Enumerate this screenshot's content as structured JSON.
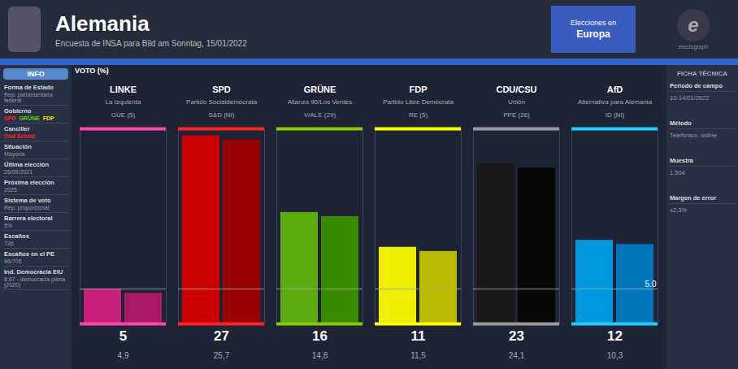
{
  "chart_data": {
    "type": "bar",
    "title": "Alemania",
    "subtitle": "Encuesta de INSA para Bild am Sonntag, 15/01/2022",
    "y_label": "VOTO (%)",
    "categories": [
      "LINKE",
      "SPD",
      "GRÜNE",
      "FDP",
      "CDU/CSU",
      "AfD"
    ],
    "category_full_names": [
      "La Izquierda",
      "Partido Socialdemócrata",
      "Alianza 90/Los Verdes",
      "Partido Libre Demócrata",
      "Unión",
      "Alternativa para Alemania"
    ],
    "category_groups": [
      "GUE (5)",
      "S&D (NI)",
      "V/ALE (29)",
      "RE (5)",
      "PPE (26)",
      "ID (NI)"
    ],
    "category_colors": [
      "#ff44aa",
      "#ff2222",
      "#88cc00",
      "#ffff00",
      "#999999",
      "#22ccff"
    ],
    "category_notes": [
      "4,9",
      "25,7",
      "14,8",
      "11,5",
      "24,1",
      "10,3"
    ],
    "series": [
      {
        "values": [
          5,
          27,
          16,
          11,
          23,
          12
        ],
        "colors": [
          "#c8207a",
          "#cc0000",
          "#5aaa10",
          "#eeee00",
          "#181818",
          "#0099dd"
        ],
        "data_labels": true
      },
      {
        "values": [
          4.4,
          26.4,
          15.4,
          10.4,
          22.4,
          11.4
        ],
        "colors": [
          "#aa1a66",
          "#990000",
          "#3a8a00",
          "#bbbb00",
          "#080808",
          "#0077bb"
        ]
      }
    ],
    "reference_line": {
      "value": 5.0,
      "label": "5.0"
    },
    "ylim": [
      0,
      28
    ],
    "tick_labels": false,
    "grid": false
  },
  "page": {
    "colors": {
      "bg_main": "#1e2336",
      "bg_header": "#252b3a",
      "bg_sidebar": "#283046",
      "accent_blue": "#3a5cbf"
    },
    "button": [
      "Elecciones en",
      "Europa"
    ],
    "logo": {
      "mark": "e",
      "name": "electograph"
    },
    "info": {
      "title": "INFO",
      "items": [
        {
          "label": "Forma de Estado",
          "value": "Rep. parlamentaria federal"
        },
        {
          "label": "Gobierno",
          "parties": [
            {
              "name": "SPD",
              "color": "#ff2222"
            },
            {
              "name": "GRÜNE",
              "color": "#66cc00"
            },
            {
              "name": "FDP",
              "color": "#ffdd00"
            }
          ]
        },
        {
          "label": "Canciller",
          "value": "Olaf Scholz",
          "color": "#ff2222"
        },
        {
          "label": "Situación",
          "value": "Mayoría"
        },
        {
          "label": "Última elección",
          "value": "26/09/2021"
        },
        {
          "label": "Próxima elección",
          "value": "2025"
        },
        {
          "label": "Sistema de voto",
          "value": "Rep. proporcional"
        },
        {
          "label": "Barrera electoral",
          "value": "5%"
        },
        {
          "label": "Escaños",
          "value": "736"
        },
        {
          "label": "Escaños en el PE",
          "value": "96/705"
        },
        {
          "label": "Ind. Democracia EIU",
          "value": "8,67 - democracia plena (2020)"
        }
      ]
    },
    "ficha": {
      "title": "FICHA TÉCNICA",
      "items": [
        {
          "label": "Período de campo",
          "value": "10-14/01/2022"
        },
        {
          "label": "Método",
          "value": "Telefónico, online"
        },
        {
          "label": "Muestra",
          "value": "1.504"
        },
        {
          "label": "Margen de error",
          "value": "±2,3%"
        }
      ]
    }
  }
}
